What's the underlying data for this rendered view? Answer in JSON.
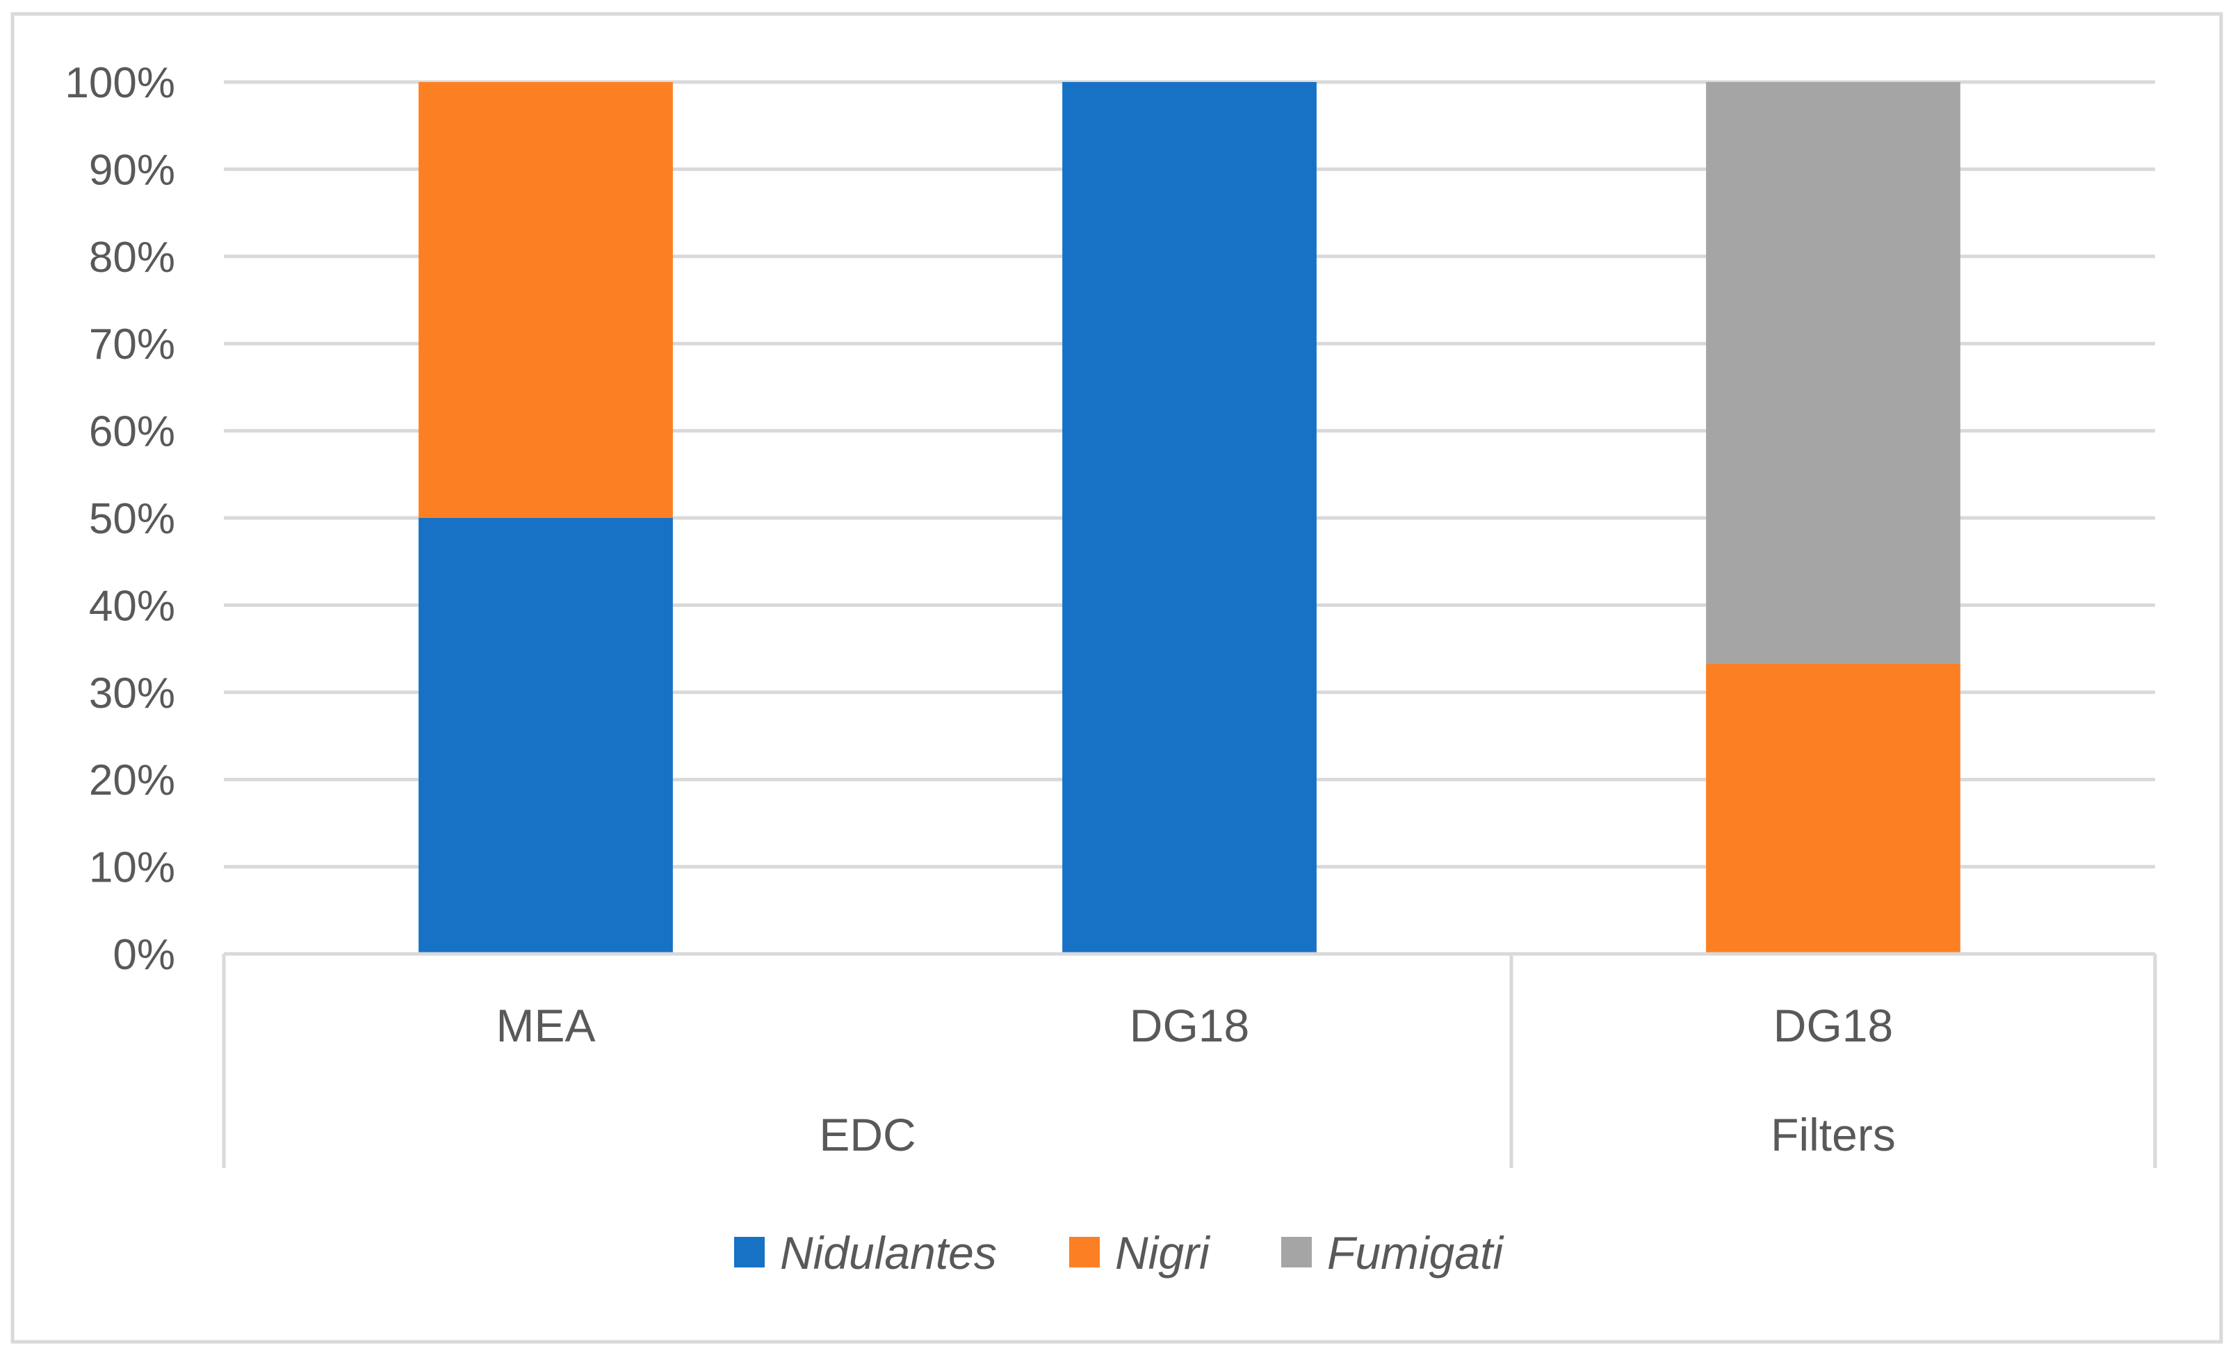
{
  "chart_data": {
    "type": "bar",
    "stacked": true,
    "percent_stacked": true,
    "title": "",
    "xlabel": "",
    "ylabel": "",
    "ylim": [
      0,
      100
    ],
    "y_ticks": [
      "0%",
      "10%",
      "20%",
      "30%",
      "40%",
      "50%",
      "60%",
      "70%",
      "80%",
      "90%",
      "100%"
    ],
    "grid": true,
    "legend_position": "bottom",
    "categories": [
      "MEA",
      "DG18",
      "DG18"
    ],
    "groups": [
      {
        "label": "EDC",
        "span": 2
      },
      {
        "label": "Filters",
        "span": 1
      }
    ],
    "series": [
      {
        "name": "Nidulantes",
        "color": "#1772C6",
        "values": [
          50,
          100,
          0
        ]
      },
      {
        "name": "Nigri",
        "color": "#FD7F24",
        "values": [
          50,
          0,
          33.3
        ]
      },
      {
        "name": "Fumigati",
        "color": "#A5A5A5",
        "values": [
          0,
          0,
          66.7
        ]
      }
    ]
  }
}
